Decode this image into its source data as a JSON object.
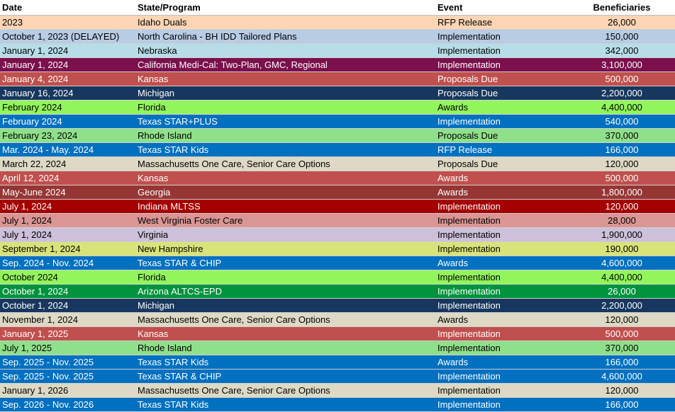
{
  "headers": {
    "date": "Date",
    "program": "State/Program",
    "event": "Event",
    "beneficiaries": "Beneficiaries"
  },
  "rows": [
    {
      "date": "2023",
      "program": "Idaho Duals",
      "event": "RFP Release",
      "beneficiaries": "26,000",
      "bg": "#fcd5b4",
      "fg": "#000000"
    },
    {
      "date": "October 1, 2023 (DELAYED)",
      "program": "North Carolina -  BH IDD Tailored Plans",
      "event": "Implementation",
      "beneficiaries": "150,000",
      "bg": "#b8cce4",
      "fg": "#000000"
    },
    {
      "date": "January 1, 2024",
      "program": "Nebraska",
      "event": "Implementation",
      "beneficiaries": "342,000",
      "bg": "#b7dee8",
      "fg": "#000000"
    },
    {
      "date": "January 1, 2024",
      "program": "California Medi-Cal: Two-Plan, GMC, Regional",
      "event": "Implementation",
      "beneficiaries": "3,100,000",
      "bg": "#7b104c",
      "fg": "#ffffff"
    },
    {
      "date": "January 4, 2024",
      "program": "Kansas",
      "event": "Proposals Due",
      "beneficiaries": "500,000",
      "bg": "#c0504d",
      "fg": "#ffffff"
    },
    {
      "date": "January 16, 2024",
      "program": "Michigan",
      "event": "Proposals Due",
      "beneficiaries": "2,200,000",
      "bg": "#17375e",
      "fg": "#ffffff"
    },
    {
      "date": "February 2024",
      "program": "Florida",
      "event": "Awards",
      "beneficiaries": "4,400,000",
      "bg": "#92f55c",
      "fg": "#000000"
    },
    {
      "date": "February 2024",
      "program": "Texas STAR+PLUS",
      "event": "Implementation",
      "beneficiaries": "540,000",
      "bg": "#0070c0",
      "fg": "#ffffff"
    },
    {
      "date": "February 23, 2024",
      "program": "Rhode Island",
      "event": "Proposals Due",
      "beneficiaries": "370,000",
      "bg": "#8fe08a",
      "fg": "#000000"
    },
    {
      "date": "Mar. 2024 - May. 2024",
      "program": "Texas STAR Kids",
      "event": "RFP Release",
      "beneficiaries": "166,000",
      "bg": "#0070c0",
      "fg": "#ffffff"
    },
    {
      "date": "March 22, 2024",
      "program": "Massachusetts One Care, Senior Care Options",
      "event": "Proposals Due",
      "beneficiaries": "120,000",
      "bg": "#ddd9c4",
      "fg": "#000000"
    },
    {
      "date": "April 12, 2024",
      "program": "Kansas",
      "event": "Awards",
      "beneficiaries": "500,000",
      "bg": "#c0504d",
      "fg": "#ffffff"
    },
    {
      "date": "May-June 2024",
      "program": "Georgia",
      "event": "Awards",
      "beneficiaries": "1,800,000",
      "bg": "#963634",
      "fg": "#ffffff"
    },
    {
      "date": "July 1, 2024",
      "program": "Indiana MLTSS",
      "event": "Implementation",
      "beneficiaries": "120,000",
      "bg": "#a50000",
      "fg": "#ffffff"
    },
    {
      "date": "July 1, 2024",
      "program": "West Virginia Foster Care",
      "event": "Implementation",
      "beneficiaries": "28,000",
      "bg": "#da9694",
      "fg": "#000000"
    },
    {
      "date": "July 1, 2024",
      "program": "Virginia",
      "event": "Implementation",
      "beneficiaries": "1,900,000",
      "bg": "#ccc0da",
      "fg": "#000000"
    },
    {
      "date": "September 1, 2024",
      "program": "New Hampshire",
      "event": "Implementation",
      "beneficiaries": "190,000",
      "bg": "#d8e47a",
      "fg": "#000000"
    },
    {
      "date": "Sep. 2024 - Nov. 2024",
      "program": "Texas STAR & CHIP",
      "event": "Awards",
      "beneficiaries": "4,600,000",
      "bg": "#0070c0",
      "fg": "#ffffff"
    },
    {
      "date": "October 2024",
      "program": "Florida",
      "event": "Implementation",
      "beneficiaries": "4,400,000",
      "bg": "#92f55c",
      "fg": "#000000"
    },
    {
      "date": "October 1, 2024",
      "program": "Arizona ALTCS-EPD",
      "event": "Implementation",
      "beneficiaries": "26,000",
      "bg": "#00933c",
      "fg": "#ffffff"
    },
    {
      "date": "October 1, 2024",
      "program": "Michigan",
      "event": "Implementation",
      "beneficiaries": "2,200,000",
      "bg": "#17375e",
      "fg": "#ffffff"
    },
    {
      "date": "November 1, 2024",
      "program": "Massachusetts One Care, Senior Care Options",
      "event": "Awards",
      "beneficiaries": "120,000",
      "bg": "#ddd9c4",
      "fg": "#000000"
    },
    {
      "date": "January 1, 2025",
      "program": "Kansas",
      "event": "Implementation",
      "beneficiaries": "500,000",
      "bg": "#c0504d",
      "fg": "#ffffff"
    },
    {
      "date": "July 1, 2025",
      "program": "Rhode Island",
      "event": "Implementation",
      "beneficiaries": "370,000",
      "bg": "#8fe08a",
      "fg": "#000000"
    },
    {
      "date": "Sep. 2025 - Nov. 2025",
      "program": "Texas STAR Kids",
      "event": "Awards",
      "beneficiaries": "166,000",
      "bg": "#0070c0",
      "fg": "#ffffff"
    },
    {
      "date": "Sep. 2025 - Nov. 2025",
      "program": "Texas STAR & CHIP",
      "event": "Implementation",
      "beneficiaries": "4,600,000",
      "bg": "#0070c0",
      "fg": "#ffffff"
    },
    {
      "date": "January 1, 2026",
      "program": "Massachusetts One Care, Senior Care Options",
      "event": "Implementation",
      "beneficiaries": "120,000",
      "bg": "#ddd9c4",
      "fg": "#000000"
    },
    {
      "date": "Sep. 2026 - Nov. 2026",
      "program": "Texas STAR Kids",
      "event": "Implementation",
      "beneficiaries": "166,000",
      "bg": "#0070c0",
      "fg": "#ffffff"
    }
  ]
}
